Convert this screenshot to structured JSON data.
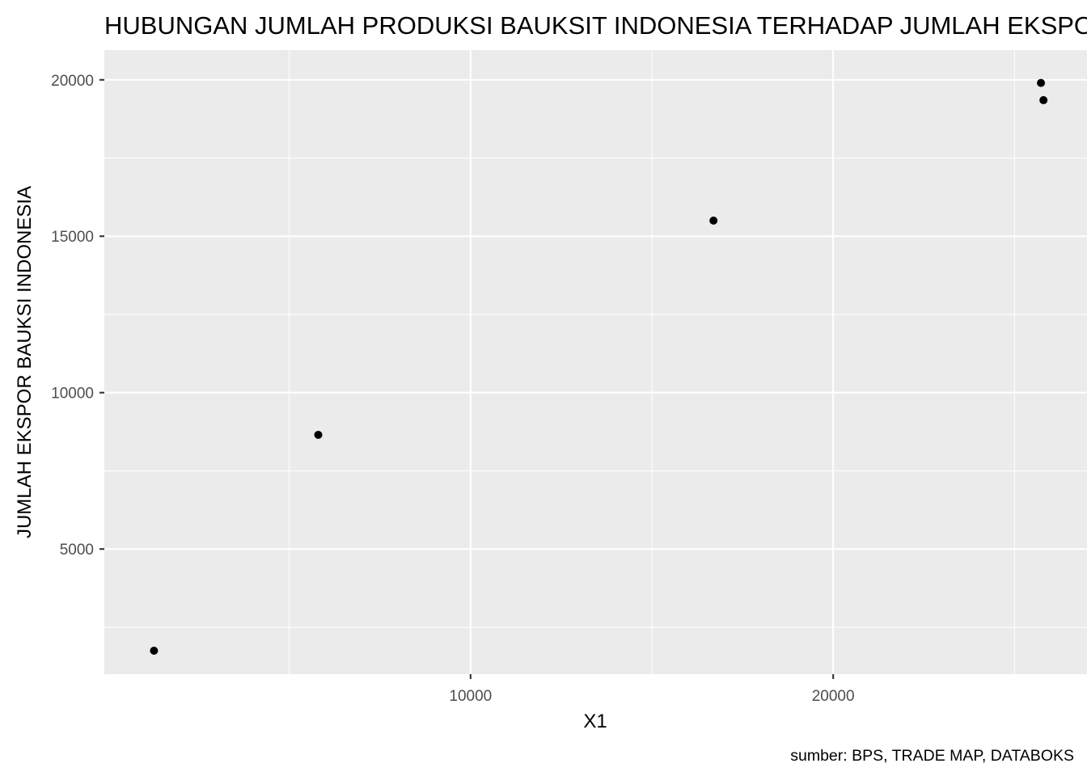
{
  "chart_data": {
    "type": "scatter",
    "title": "HUBUNGAN JUMLAH PRODUKSI BAUKSIT INDONESIA TERHADAP JUMLAH EKSPOR BAUKSI INDONESIA",
    "xlabel": "X1",
    "ylabel": "JUMLAH EKSPOR BAUKSI INDONESIA",
    "caption": "sumber: BPS, TRADE MAP, DATABOKS",
    "xlim": [
      -100,
      27000
    ],
    "ylim": [
      1000,
      20950
    ],
    "x_ticks": [
      10000,
      20000
    ],
    "x_tick_labels": [
      "10000",
      "20000"
    ],
    "y_ticks": [
      5000,
      10000,
      15000,
      20000
    ],
    "y_tick_labels": [
      "5000",
      "10000",
      "15000",
      "20000"
    ],
    "grid": true,
    "points": [
      {
        "x": 1270,
        "y": 1750
      },
      {
        "x": 5800,
        "y": 8650
      },
      {
        "x": 16700,
        "y": 15500
      },
      {
        "x": 25730,
        "y": 19900
      },
      {
        "x": 25800,
        "y": 19350
      }
    ],
    "colors": {
      "panel": "#ebebeb",
      "grid": "#ffffff",
      "point": "#000000",
      "tick_label": "#4d4d4d"
    }
  }
}
